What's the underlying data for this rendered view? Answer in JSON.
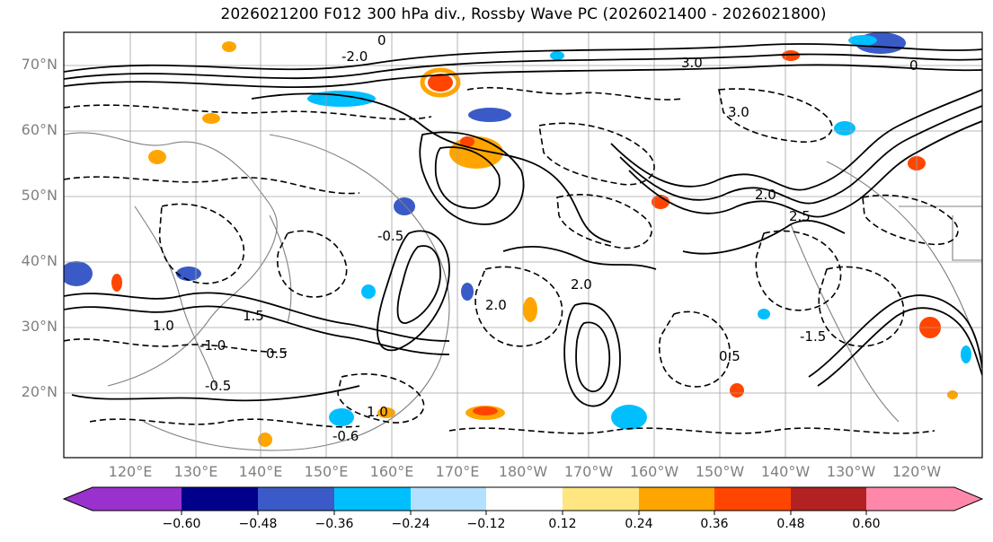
{
  "title": "2026021200 F012 300 hPa div., Rossby Wave PC (2026021400 - 2026021800)",
  "map": {
    "lat_labels": [
      "70°N",
      "60°N",
      "50°N",
      "40°N",
      "30°N",
      "20°N"
    ],
    "lon_labels": [
      "120°E",
      "130°E",
      "140°E",
      "150°E",
      "160°E",
      "170°E",
      "180°W",
      "170°W",
      "160°W",
      "150°W",
      "140°W",
      "130°W",
      "120°W"
    ],
    "contour_labels": [
      "2.0",
      "0",
      "-0.5",
      "1.0",
      "3.0",
      "-2.0",
      "1.5",
      "-1.5",
      "2.5",
      "-1.0",
      "0.5",
      "-0.6"
    ],
    "color_scheme": {
      "coastline": "#808080",
      "grid": "#a0a0a0",
      "contours": "#000000"
    }
  },
  "colorbar": {
    "ticks": [
      "−0.60",
      "−0.48",
      "−0.36",
      "−0.24",
      "−0.12",
      "0.12",
      "0.24",
      "0.36",
      "0.48",
      "0.60"
    ],
    "colors": [
      "#9932cc",
      "#00008b",
      "#3a5bc7",
      "#00bfff",
      "#b3e0ff",
      "#ffffff",
      "#ffe680",
      "#ffa500",
      "#ff4500",
      "#b22222",
      "#ff88aa"
    ]
  }
}
